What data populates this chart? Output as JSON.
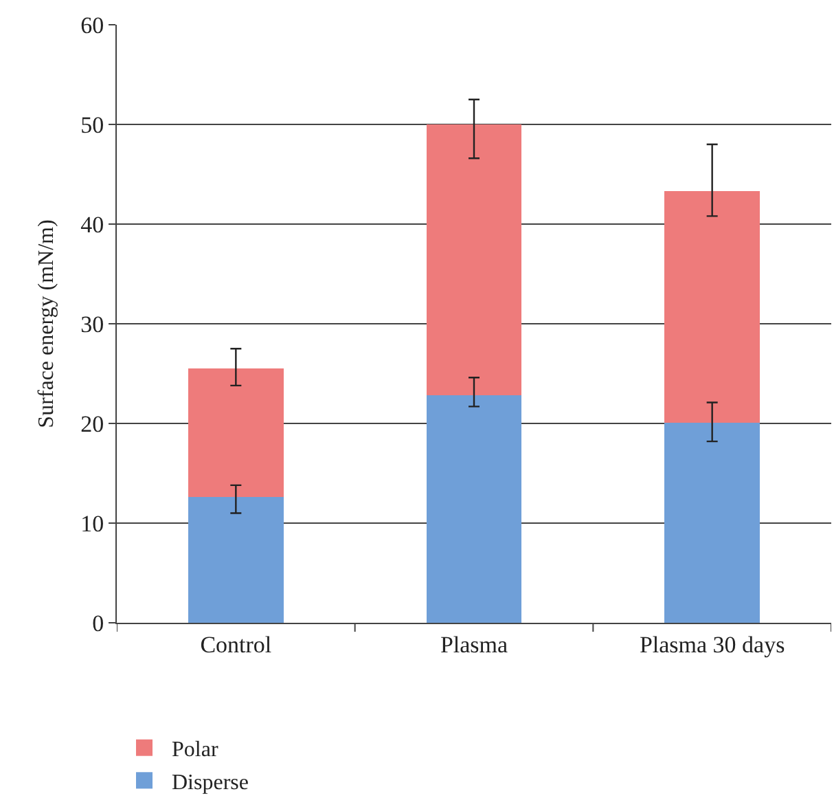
{
  "chart_data": {
    "type": "bar",
    "stacked": true,
    "ylabel": "Surface energy (mN/m)",
    "categories": [
      "Control",
      "Plasma",
      "Plasma 30 days"
    ],
    "series": [
      {
        "name": "Disperse",
        "color": "#6f9fd8",
        "values": [
          12.6,
          22.8,
          20.1
        ],
        "errors": [
          [
            11.0,
            13.8
          ],
          [
            21.7,
            24.6
          ],
          [
            18.2,
            22.1
          ]
        ]
      },
      {
        "name": "Polar",
        "color": "#ee7b7b",
        "values": [
          12.9,
          27.2,
          23.2
        ],
        "errors": [
          [
            23.8,
            27.5
          ],
          [
            46.6,
            52.5
          ],
          [
            40.8,
            48.0
          ]
        ]
      }
    ],
    "ylim": [
      0,
      60
    ],
    "yticks": [
      0,
      10,
      20,
      30,
      40,
      50,
      60
    ],
    "grid": "y",
    "legend": "bottom left"
  }
}
